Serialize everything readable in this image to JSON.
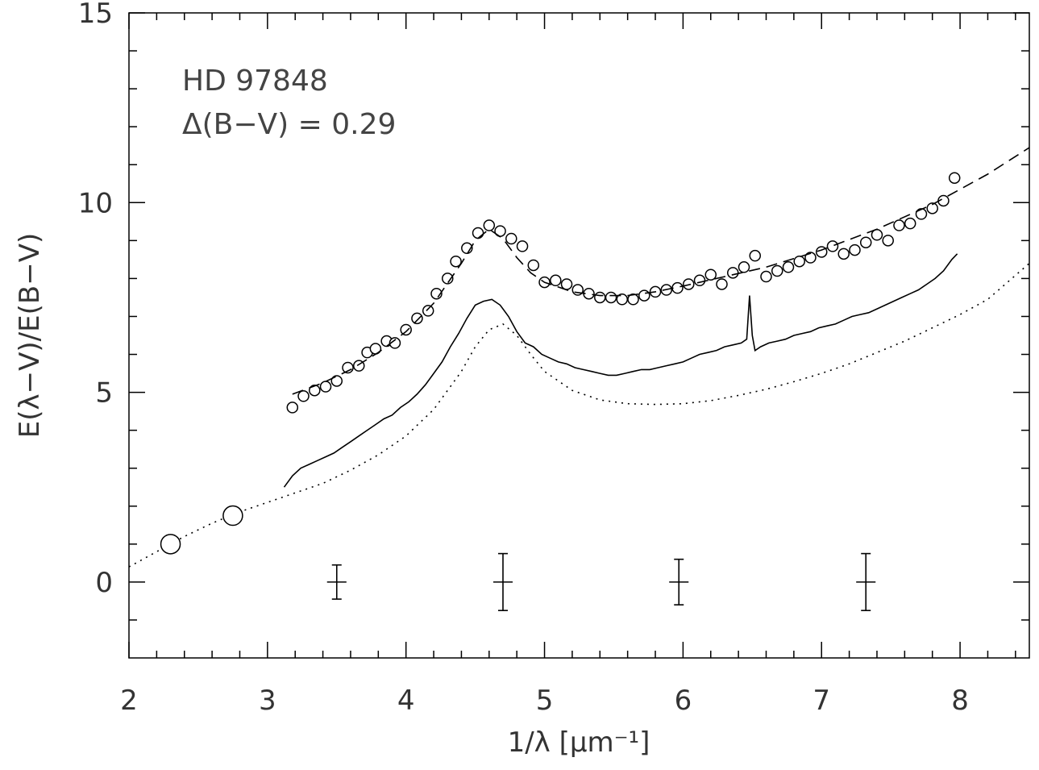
{
  "chart_data": {
    "type": "line",
    "xlabel": "1/λ [μm⁻¹]",
    "ylabel": "E(λ−V)/E(B−V)",
    "xlim": [
      2,
      8.5
    ],
    "ylim": [
      -2,
      15
    ],
    "x_ticks": [
      2,
      3,
      4,
      5,
      6,
      7,
      8
    ],
    "y_ticks": [
      0,
      5,
      10,
      15
    ],
    "grid": false,
    "legend": "none",
    "annotations": [
      "HD 97848",
      "Δ(B−V) = 0.29"
    ],
    "series": [
      {
        "style": "open-circles",
        "x": [
          3.18,
          3.26,
          3.34,
          3.42,
          3.5,
          3.58,
          3.66,
          3.72,
          3.78,
          3.86,
          3.92,
          4.0,
          4.08,
          4.16,
          4.22,
          4.3,
          4.36,
          4.44,
          4.52,
          4.6,
          4.68,
          4.76,
          4.84,
          4.92,
          5.0,
          5.08,
          5.16,
          5.24,
          5.32,
          5.4,
          5.48,
          5.56,
          5.64,
          5.72,
          5.8,
          5.88,
          5.96,
          6.04,
          6.12,
          6.2,
          6.28,
          6.36,
          6.44,
          6.52,
          6.6,
          6.68,
          6.76,
          6.84,
          6.92,
          7.0,
          7.08,
          7.16,
          7.24,
          7.32,
          7.4,
          7.48,
          7.56,
          7.64,
          7.72,
          7.8,
          7.88,
          7.96
        ],
        "y": [
          4.6,
          4.9,
          5.05,
          5.15,
          5.3,
          5.65,
          5.7,
          6.05,
          6.15,
          6.35,
          6.3,
          6.65,
          6.95,
          7.15,
          7.6,
          8.0,
          8.45,
          8.8,
          9.2,
          9.4,
          9.25,
          9.05,
          8.85,
          8.35,
          7.9,
          7.95,
          7.85,
          7.7,
          7.6,
          7.5,
          7.5,
          7.45,
          7.45,
          7.55,
          7.65,
          7.7,
          7.75,
          7.85,
          7.95,
          8.1,
          7.85,
          8.15,
          8.3,
          8.6,
          8.05,
          8.2,
          8.3,
          8.45,
          8.55,
          8.7,
          8.85,
          8.65,
          8.75,
          8.95,
          9.15,
          9.0,
          9.4,
          9.45,
          9.7,
          9.85,
          10.05,
          10.65
        ]
      },
      {
        "style": "dashed",
        "x": [
          3.18,
          3.4,
          3.6,
          3.8,
          4.0,
          4.2,
          4.4,
          4.5,
          4.6,
          4.7,
          4.8,
          4.9,
          5.0,
          5.2,
          5.4,
          5.6,
          5.8,
          6.0,
          6.3,
          6.6,
          7.0,
          7.4,
          7.8,
          8.2,
          8.5
        ],
        "y": [
          4.95,
          5.25,
          5.6,
          6.05,
          6.6,
          7.35,
          8.4,
          9.0,
          9.3,
          9.05,
          8.55,
          8.15,
          7.9,
          7.65,
          7.55,
          7.55,
          7.65,
          7.8,
          8.05,
          8.3,
          8.75,
          9.3,
          9.95,
          10.75,
          11.45
        ]
      },
      {
        "style": "solid",
        "x": [
          3.12,
          3.18,
          3.24,
          3.3,
          3.36,
          3.42,
          3.48,
          3.54,
          3.6,
          3.66,
          3.72,
          3.78,
          3.84,
          3.9,
          3.96,
          4.02,
          4.08,
          4.14,
          4.2,
          4.26,
          4.32,
          4.38,
          4.44,
          4.5,
          4.56,
          4.62,
          4.68,
          4.74,
          4.8,
          4.86,
          4.92,
          4.98,
          5.04,
          5.1,
          5.16,
          5.22,
          5.28,
          5.34,
          5.4,
          5.46,
          5.52,
          5.58,
          5.64,
          5.7,
          5.76,
          5.82,
          5.88,
          5.94,
          6.0,
          6.06,
          6.12,
          6.18,
          6.24,
          6.3,
          6.36,
          6.42,
          6.46,
          6.48,
          6.5,
          6.52,
          6.56,
          6.62,
          6.68,
          6.74,
          6.8,
          6.86,
          6.92,
          6.98,
          7.04,
          7.1,
          7.16,
          7.22,
          7.28,
          7.34,
          7.4,
          7.46,
          7.52,
          7.58,
          7.64,
          7.7,
          7.76,
          7.82,
          7.88,
          7.94,
          7.98
        ],
        "y": [
          2.5,
          2.8,
          3.0,
          3.1,
          3.2,
          3.3,
          3.4,
          3.55,
          3.7,
          3.85,
          4.0,
          4.15,
          4.3,
          4.4,
          4.6,
          4.75,
          4.95,
          5.2,
          5.5,
          5.8,
          6.2,
          6.55,
          6.95,
          7.3,
          7.4,
          7.45,
          7.3,
          7.0,
          6.6,
          6.3,
          6.2,
          6.0,
          5.9,
          5.8,
          5.75,
          5.65,
          5.6,
          5.55,
          5.5,
          5.45,
          5.45,
          5.5,
          5.55,
          5.6,
          5.6,
          5.65,
          5.7,
          5.75,
          5.8,
          5.9,
          6.0,
          6.05,
          6.1,
          6.2,
          6.25,
          6.3,
          6.4,
          7.55,
          6.5,
          6.1,
          6.2,
          6.3,
          6.35,
          6.4,
          6.5,
          6.55,
          6.6,
          6.7,
          6.75,
          6.8,
          6.9,
          7.0,
          7.05,
          7.1,
          7.2,
          7.3,
          7.4,
          7.5,
          7.6,
          7.7,
          7.85,
          8.0,
          8.2,
          8.5,
          8.65
        ]
      },
      {
        "style": "dotted",
        "x": [
          2.0,
          2.2,
          2.4,
          2.6,
          2.8,
          3.0,
          3.2,
          3.4,
          3.6,
          3.8,
          4.0,
          4.2,
          4.4,
          4.5,
          4.6,
          4.7,
          4.8,
          4.9,
          5.0,
          5.2,
          5.4,
          5.6,
          5.8,
          6.0,
          6.2,
          6.4,
          6.6,
          6.8,
          7.0,
          7.2,
          7.4,
          7.6,
          7.8,
          8.0,
          8.2,
          8.5
        ],
        "y": [
          0.4,
          0.8,
          1.2,
          1.55,
          1.85,
          2.1,
          2.35,
          2.6,
          2.95,
          3.35,
          3.85,
          4.55,
          5.55,
          6.2,
          6.65,
          6.8,
          6.5,
          6.0,
          5.55,
          5.05,
          4.8,
          4.7,
          4.68,
          4.7,
          4.78,
          4.92,
          5.08,
          5.28,
          5.5,
          5.75,
          6.05,
          6.35,
          6.7,
          7.05,
          7.45,
          8.4
        ]
      },
      {
        "style": "large-open-circles",
        "x": [
          2.3,
          2.75
        ],
        "y": [
          1.0,
          1.75
        ]
      }
    ],
    "error_bars": [
      {
        "x": 3.5,
        "y": 0,
        "yerr": 0.45,
        "xerr": 0.07
      },
      {
        "x": 4.7,
        "y": 0,
        "yerr": 0.75,
        "xerr": 0.07
      },
      {
        "x": 5.97,
        "y": 0,
        "yerr": 0.6,
        "xerr": 0.07
      },
      {
        "x": 7.32,
        "y": 0,
        "yerr": 0.75,
        "xerr": 0.07
      }
    ]
  }
}
